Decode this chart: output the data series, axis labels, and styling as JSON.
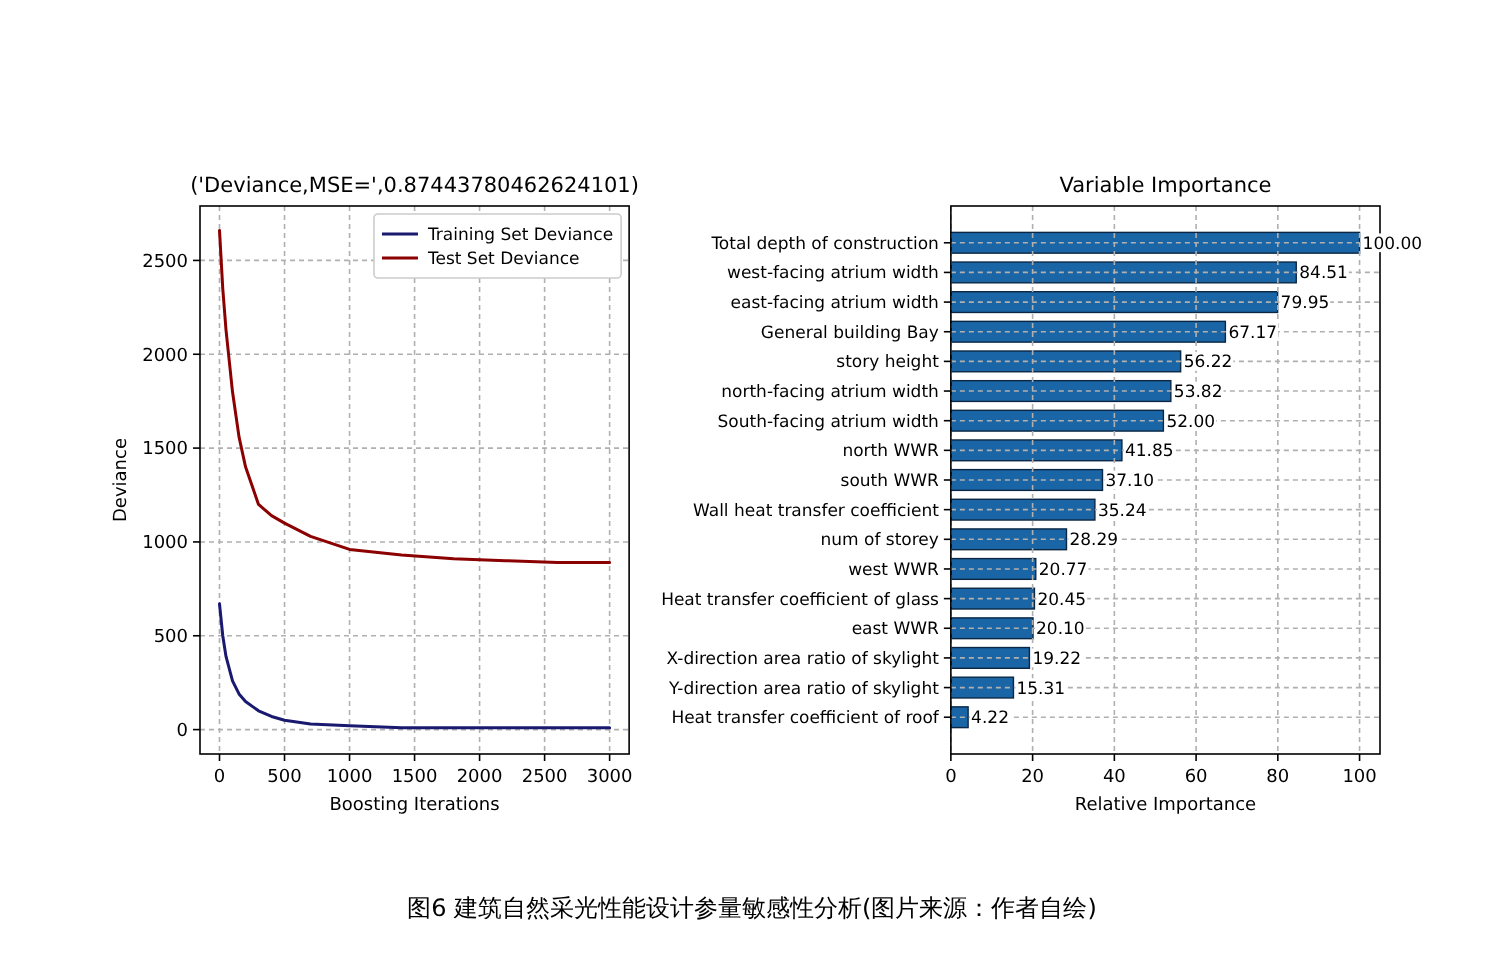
{
  "chart_data": [
    {
      "type": "line",
      "title": "('Deviance,MSE=',0.87443780462624101)",
      "xlabel": "Boosting Iterations",
      "ylabel": "Deviance",
      "xlim": [
        -150,
        3150
      ],
      "ylim": [
        -130,
        2790
      ],
      "xticks": [
        0,
        500,
        1000,
        1500,
        2000,
        2500,
        3000
      ],
      "yticks": [
        0,
        500,
        1000,
        1500,
        2000,
        2500
      ],
      "grid": true,
      "legend": "top right",
      "x": [
        0,
        25,
        50,
        100,
        150,
        200,
        300,
        400,
        500,
        700,
        1000,
        1400,
        1800,
        2200,
        2600,
        3000
      ],
      "series": [
        {
          "name": "Training Set Deviance",
          "color": "#191970",
          "values": [
            670,
            500,
            390,
            260,
            190,
            150,
            100,
            70,
            50,
            30,
            20,
            10,
            10,
            10,
            10,
            10
          ]
        },
        {
          "name": "Test Set Deviance",
          "color": "#8b0000",
          "values": [
            2660,
            2350,
            2130,
            1800,
            1560,
            1400,
            1200,
            1140,
            1100,
            1030,
            960,
            930,
            910,
            900,
            890,
            890
          ]
        }
      ],
      "annotations": [
        "图6 建筑自然采光性能设计参量敏感性分析(图片来源：作者自绘)"
      ]
    },
    {
      "type": "bar",
      "orientation": "horizontal",
      "title": "Variable Importance",
      "xlabel": "Relative Importance",
      "xlim": [
        0,
        105
      ],
      "xticks": [
        0,
        20,
        40,
        60,
        80,
        100
      ],
      "grid": true,
      "color": "#1a65a5",
      "categories": [
        "Total depth of construction",
        "west-facing atrium width",
        "east-facing atrium width",
        "General building Bay",
        "story height",
        "north-facing atrium width",
        "South-facing atrium width",
        "north WWR",
        "south WWR",
        "Wall heat transfer coefficient",
        "num of storey",
        "west WWR",
        "Heat transfer coefficient of glass",
        "east WWR",
        "X-direction area ratio of skylight",
        "Y-direction area ratio of skylight",
        "Heat transfer coefficient of roof"
      ],
      "values": [
        100,
        84.51,
        79.95,
        67.17,
        56.22,
        53.82,
        52,
        41.85,
        37.1,
        35.24,
        28.29,
        20.77,
        20.45,
        20.1,
        19.22,
        15.31,
        4.22
      ],
      "value_labels": [
        "100.00",
        "84.51",
        "79.95",
        "67.17",
        "56.22",
        "53.82",
        "52.00",
        "41.85",
        "37.10",
        "35.24",
        "28.29",
        "20.77",
        "20.45",
        "20.10",
        "19.22",
        "15.31",
        "4.22"
      ]
    }
  ]
}
